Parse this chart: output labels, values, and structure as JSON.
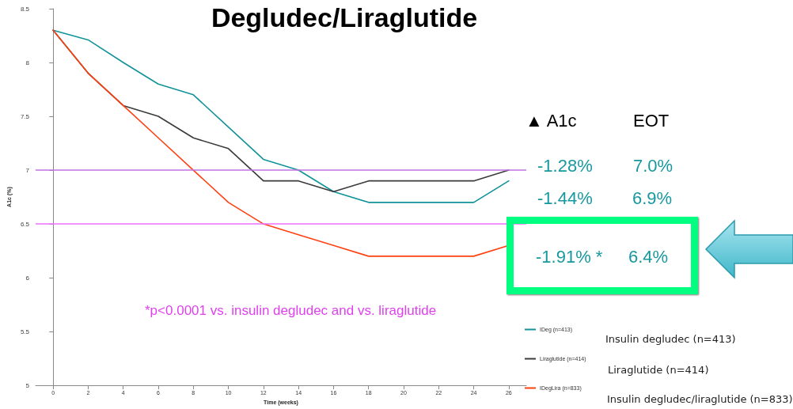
{
  "chart_data": {
    "type": "line",
    "title": "Degludec/Liraglutide",
    "xlabel": "Time (weeks)",
    "ylabel": "A1c (%)",
    "x": [
      0,
      2,
      4,
      6,
      8,
      10,
      12,
      14,
      16,
      18,
      20,
      22,
      24,
      26
    ],
    "xlim": [
      -1,
      27
    ],
    "xticks": [
      0,
      2,
      4,
      6,
      8,
      10,
      12,
      14,
      16,
      18,
      20,
      22,
      24,
      26
    ],
    "ylim": [
      5,
      8.5
    ],
    "yticks": [
      5,
      5.5,
      6,
      6.5,
      7,
      7.5,
      8,
      8.5
    ],
    "series": [
      {
        "name": "IDeg (n=413)",
        "color": "#12939a",
        "values": [
          8.3,
          8.21,
          8.0,
          7.8,
          7.7,
          7.4,
          7.1,
          7.0,
          6.8,
          6.7,
          6.7,
          6.7,
          6.7,
          6.9
        ]
      },
      {
        "name": "Liraglutide (n=414)",
        "color": "#3a3a3a",
        "values": [
          8.3,
          7.9,
          7.6,
          7.5,
          7.3,
          7.2,
          6.9,
          6.9,
          6.8,
          6.9,
          6.9,
          6.9,
          6.9,
          7.0
        ]
      },
      {
        "name": "IDegLira (n=833)",
        "color": "#ff4010",
        "values": [
          8.3,
          7.9,
          7.6,
          7.3,
          7.0,
          6.7,
          6.5,
          6.4,
          6.3,
          6.2,
          6.2,
          6.2,
          6.2,
          6.3
        ]
      }
    ],
    "ref_lines": [
      {
        "axis": "y",
        "value": 7,
        "color": "#c070e0",
        "label": null
      },
      {
        "axis": "y",
        "value": 6.5,
        "color": "#ee70ff",
        "label": null
      }
    ],
    "annotations": [
      "*p<0.0001 vs. insulin degludec and vs. liraglutide",
      "▲ A1c",
      "EOT",
      "-1.28%",
      "7.0%",
      "-1.44%",
      "6.9%",
      "-1.91% *",
      "6.4%",
      "Insulin degludec (n=413)",
      "Liraglutide (n=414)",
      "Insulin degludec/liraglutide (n=833)"
    ],
    "legend": "bottom right",
    "grid": false,
    "marker": "none",
    "line_style": "solid"
  }
}
